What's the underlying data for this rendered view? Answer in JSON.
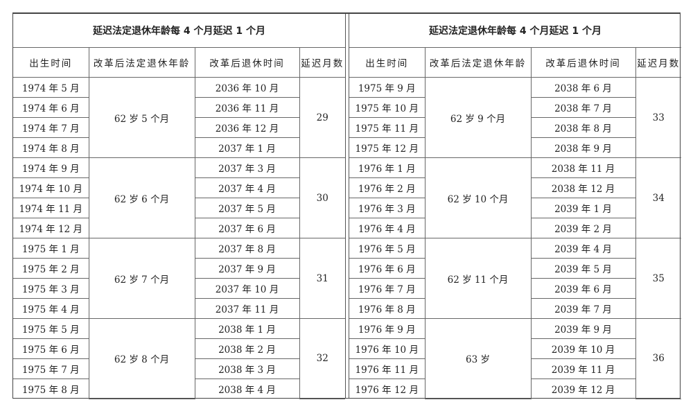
{
  "tables": [
    {
      "title": "延迟法定退休年龄每 4 个月延迟 1 个月",
      "headers": [
        "出生时间",
        "改革后法定退休年龄",
        "改革后退休时间",
        "延迟月数"
      ],
      "groups": [
        {
          "age": "62 岁 5 个月",
          "delay": "29",
          "rows": [
            [
              "1974 年 5 月",
              "2036 年 10 月"
            ],
            [
              "1974 年 6 月",
              "2036 年 11 月"
            ],
            [
              "1974 年 7 月",
              "2036 年 12 月"
            ],
            [
              "1974 年 8 月",
              "2037 年 1 月"
            ]
          ]
        },
        {
          "age": "62 岁 6 个月",
          "delay": "30",
          "rows": [
            [
              "1974 年 9 月",
              "2037 年 3 月"
            ],
            [
              "1974 年 10 月",
              "2037 年 4 月"
            ],
            [
              "1974 年 11 月",
              "2037 年 5 月"
            ],
            [
              "1974 年 12 月",
              "2037 年 6 月"
            ]
          ]
        },
        {
          "age": "62 岁 7 个月",
          "delay": "31",
          "rows": [
            [
              "1975 年 1 月",
              "2037 年 8 月"
            ],
            [
              "1975 年 2 月",
              "2037 年 9 月"
            ],
            [
              "1975 年 3 月",
              "2037 年 10 月"
            ],
            [
              "1975 年 4 月",
              "2037 年 11 月"
            ]
          ]
        },
        {
          "age": "62 岁 8 个月",
          "delay": "32",
          "rows": [
            [
              "1975 年 5 月",
              "2038 年 1 月"
            ],
            [
              "1975 年 6 月",
              "2038 年 2 月"
            ],
            [
              "1975 年 7 月",
              "2038 年 3 月"
            ],
            [
              "1975 年 8 月",
              "2038 年 4 月"
            ]
          ]
        }
      ]
    },
    {
      "title": "延迟法定退休年龄每 4 个月延迟 1 个月",
      "headers": [
        "出生时间",
        "改革后法定退休年龄",
        "改革后退休时间",
        "延迟月数"
      ],
      "groups": [
        {
          "age": "62 岁 9 个月",
          "delay": "33",
          "rows": [
            [
              "1975 年 9 月",
              "2038 年 6 月"
            ],
            [
              "1975 年 10 月",
              "2038 年 7 月"
            ],
            [
              "1975 年 11 月",
              "2038 年 8 月"
            ],
            [
              "1975 年 12 月",
              "2038 年 9 月"
            ]
          ]
        },
        {
          "age": "62 岁 10 个月",
          "delay": "34",
          "rows": [
            [
              "1976 年 1 月",
              "2038 年 11 月"
            ],
            [
              "1976 年 2 月",
              "2038 年 12 月"
            ],
            [
              "1976 年 3 月",
              "2039 年 1 月"
            ],
            [
              "1976 年 4 月",
              "2039 年 2 月"
            ]
          ]
        },
        {
          "age": "62 岁 11 个月",
          "delay": "35",
          "rows": [
            [
              "1976 年 5 月",
              "2039 年 4 月"
            ],
            [
              "1976 年 6 月",
              "2039 年 5 月"
            ],
            [
              "1976 年 7 月",
              "2039 年 6 月"
            ],
            [
              "1976 年 8 月",
              "2039 年 7 月"
            ]
          ]
        },
        {
          "age": "63 岁",
          "delay": "36",
          "rows": [
            [
              "1976 年 9 月",
              "2039 年 9 月"
            ],
            [
              "1976 年 10 月",
              "2039 年 10 月"
            ],
            [
              "1976 年 11 月",
              "2039 年 11 月"
            ],
            [
              "1976 年 12 月",
              "2039 年 12 月"
            ]
          ]
        }
      ]
    }
  ]
}
